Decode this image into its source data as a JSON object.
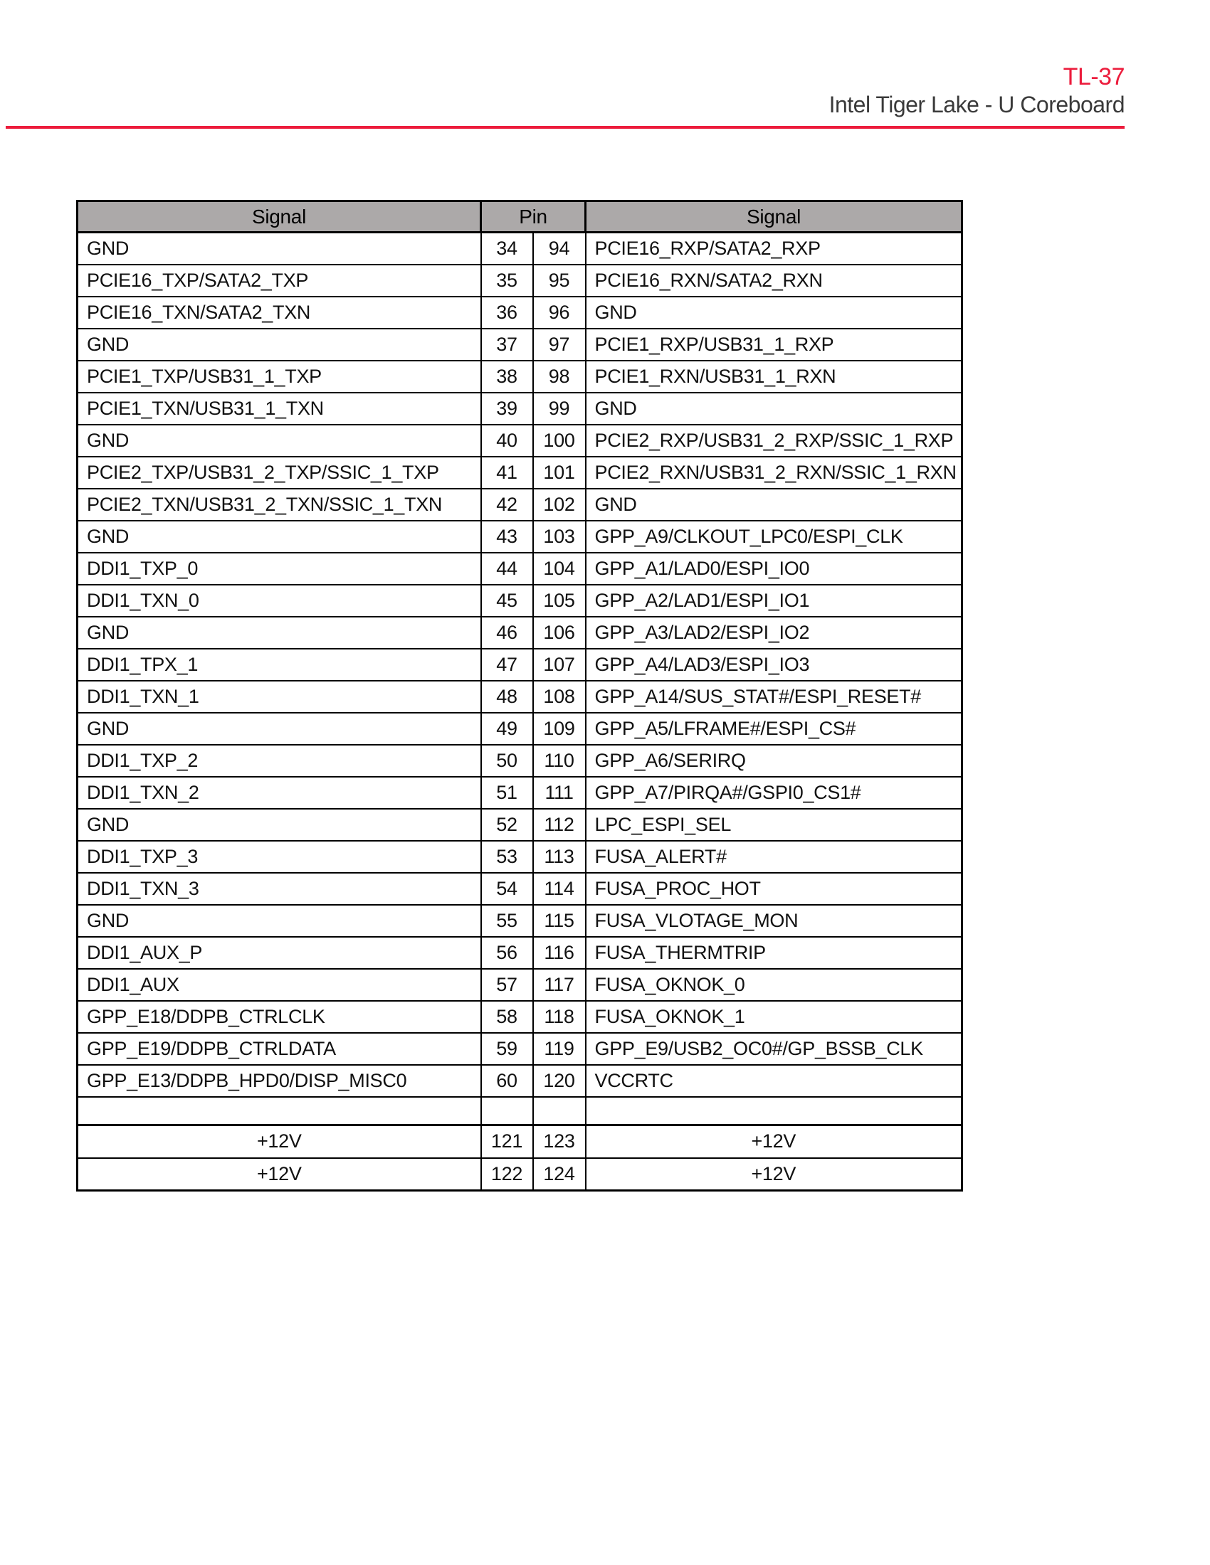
{
  "header": {
    "code": "TL-37",
    "title": "Intel Tiger Lake - U Coreboard",
    "accent_color": "#ec1c3c"
  },
  "table": {
    "header_bg": "#aca9a9",
    "headers": [
      "Signal",
      "Pin",
      "Signal"
    ],
    "rows": [
      {
        "left": "GND",
        "pin_left": "34",
        "pin_right": "94",
        "right": "PCIE16_RXP/SATA2_RXP"
      },
      {
        "left": "PCIE16_TXP/SATA2_TXP",
        "pin_left": "35",
        "pin_right": "95",
        "right": "PCIE16_RXN/SATA2_RXN"
      },
      {
        "left": "PCIE16_TXN/SATA2_TXN",
        "pin_left": "36",
        "pin_right": "96",
        "right": "GND"
      },
      {
        "left": "GND",
        "pin_left": "37",
        "pin_right": "97",
        "right": "PCIE1_RXP/USB31_1_RXP"
      },
      {
        "left": "PCIE1_TXP/USB31_1_TXP",
        "pin_left": "38",
        "pin_right": "98",
        "right": "PCIE1_RXN/USB31_1_RXN"
      },
      {
        "left": "PCIE1_TXN/USB31_1_TXN",
        "pin_left": "39",
        "pin_right": "99",
        "right": "GND"
      },
      {
        "left": "GND",
        "pin_left": "40",
        "pin_right": "100",
        "right": "PCIE2_RXP/USB31_2_RXP/SSIC_1_RXP"
      },
      {
        "left": "PCIE2_TXP/USB31_2_TXP/SSIC_1_TXP",
        "pin_left": "41",
        "pin_right": "101",
        "right": "PCIE2_RXN/USB31_2_RXN/SSIC_1_RXN"
      },
      {
        "left": "PCIE2_TXN/USB31_2_TXN/SSIC_1_TXN",
        "pin_left": "42",
        "pin_right": "102",
        "right": "GND"
      },
      {
        "left": "GND",
        "pin_left": "43",
        "pin_right": "103",
        "right": "GPP_A9/CLKOUT_LPC0/ESPI_CLK"
      },
      {
        "left": "DDI1_TXP_0",
        "pin_left": "44",
        "pin_right": "104",
        "right": "GPP_A1/LAD0/ESPI_IO0"
      },
      {
        "left": "DDI1_TXN_0",
        "pin_left": "45",
        "pin_right": "105",
        "right": "GPP_A2/LAD1/ESPI_IO1"
      },
      {
        "left": "GND",
        "pin_left": "46",
        "pin_right": "106",
        "right": "GPP_A3/LAD2/ESPI_IO2"
      },
      {
        "left": "DDI1_TPX_1",
        "pin_left": "47",
        "pin_right": "107",
        "right": "GPP_A4/LAD3/ESPI_IO3"
      },
      {
        "left": "DDI1_TXN_1",
        "pin_left": "48",
        "pin_right": "108",
        "right": "GPP_A14/SUS_STAT#/ESPI_RESET#"
      },
      {
        "left": "GND",
        "pin_left": "49",
        "pin_right": "109",
        "right": "GPP_A5/LFRAME#/ESPI_CS#"
      },
      {
        "left": "DDI1_TXP_2",
        "pin_left": "50",
        "pin_right": "110",
        "right": "GPP_A6/SERIRQ"
      },
      {
        "left": "DDI1_TXN_2",
        "pin_left": "51",
        "pin_right": "111",
        "right": "GPP_A7/PIRQA#/GSPI0_CS1#"
      },
      {
        "left": "GND",
        "pin_left": "52",
        "pin_right": "112",
        "right": "LPC_ESPI_SEL"
      },
      {
        "left": "DDI1_TXP_3",
        "pin_left": "53",
        "pin_right": "113",
        "right": "FUSA_ALERT#"
      },
      {
        "left": "DDI1_TXN_3",
        "pin_left": "54",
        "pin_right": "114",
        "right": "FUSA_PROC_HOT"
      },
      {
        "left": "GND",
        "pin_left": "55",
        "pin_right": "115",
        "right": "FUSA_VLOTAGE_MON"
      },
      {
        "left": "DDI1_AUX_P",
        "pin_left": "56",
        "pin_right": "116",
        "right": "FUSA_THERMTRIP"
      },
      {
        "left": "DDI1_AUX",
        "pin_left": "57",
        "pin_right": "117",
        "right": "FUSA_OKNOK_0"
      },
      {
        "left": "GPP_E18/DDPB_CTRLCLK",
        "pin_left": "58",
        "pin_right": "118",
        "right": "FUSA_OKNOK_1"
      },
      {
        "left": "GPP_E19/DDPB_CTRLDATA",
        "pin_left": "59",
        "pin_right": "119",
        "right": "GPP_E9/USB2_OC0#/GP_BSSB_CLK"
      },
      {
        "left": "GPP_E13/DDPB_HPD0/DISP_MISC0",
        "pin_left": "60",
        "pin_right": "120",
        "right": "VCCRTC"
      }
    ],
    "empty_row": {
      "left": "",
      "pin_left": "",
      "pin_right": "",
      "right": ""
    },
    "power_rows": [
      {
        "left": "+12V",
        "pin_left": "121",
        "pin_right": "123",
        "right": "+12V"
      },
      {
        "left": "+12V",
        "pin_left": "122",
        "pin_right": "124",
        "right": "+12V"
      }
    ]
  }
}
